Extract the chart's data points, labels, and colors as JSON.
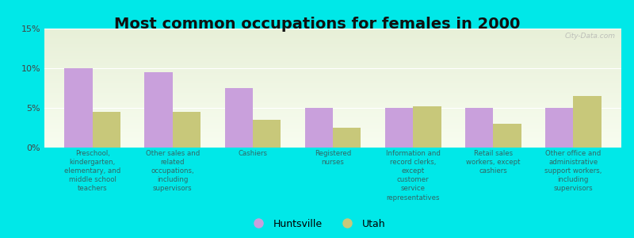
{
  "title": "Most common occupations for females in 2000",
  "categories": [
    "Preschool,\nkindergarten,\nelementary, and\nmiddle school\nteachers",
    "Other sales and\nrelated\noccupations,\nincluding\nsupervisors",
    "Cashiers",
    "Registered\nnurses",
    "Information and\nrecord clerks,\nexcept\ncustomer\nservice\nrepresentatives",
    "Retail sales\nworkers, except\ncashiers",
    "Other office and\nadministrative\nsupport workers,\nincluding\nsupervisors"
  ],
  "huntsville_values": [
    10.0,
    9.5,
    7.5,
    5.0,
    5.0,
    5.0,
    5.0
  ],
  "utah_values": [
    4.5,
    4.5,
    3.5,
    2.5,
    5.2,
    3.0,
    6.5
  ],
  "huntsville_color": "#c9a0dc",
  "utah_color": "#c8c87a",
  "background_color": "#00e8e8",
  "plot_bg_top": "#e8f0d8",
  "plot_bg_bottom": "#f8fdf0",
  "ylim": [
    0,
    15
  ],
  "yticks": [
    0,
    5,
    10,
    15
  ],
  "ytick_labels": [
    "0%",
    "5%",
    "10%",
    "15%"
  ],
  "bar_width": 0.35,
  "title_fontsize": 14,
  "legend_huntsville": "Huntsville",
  "legend_utah": "Utah",
  "watermark": "City-Data.com"
}
